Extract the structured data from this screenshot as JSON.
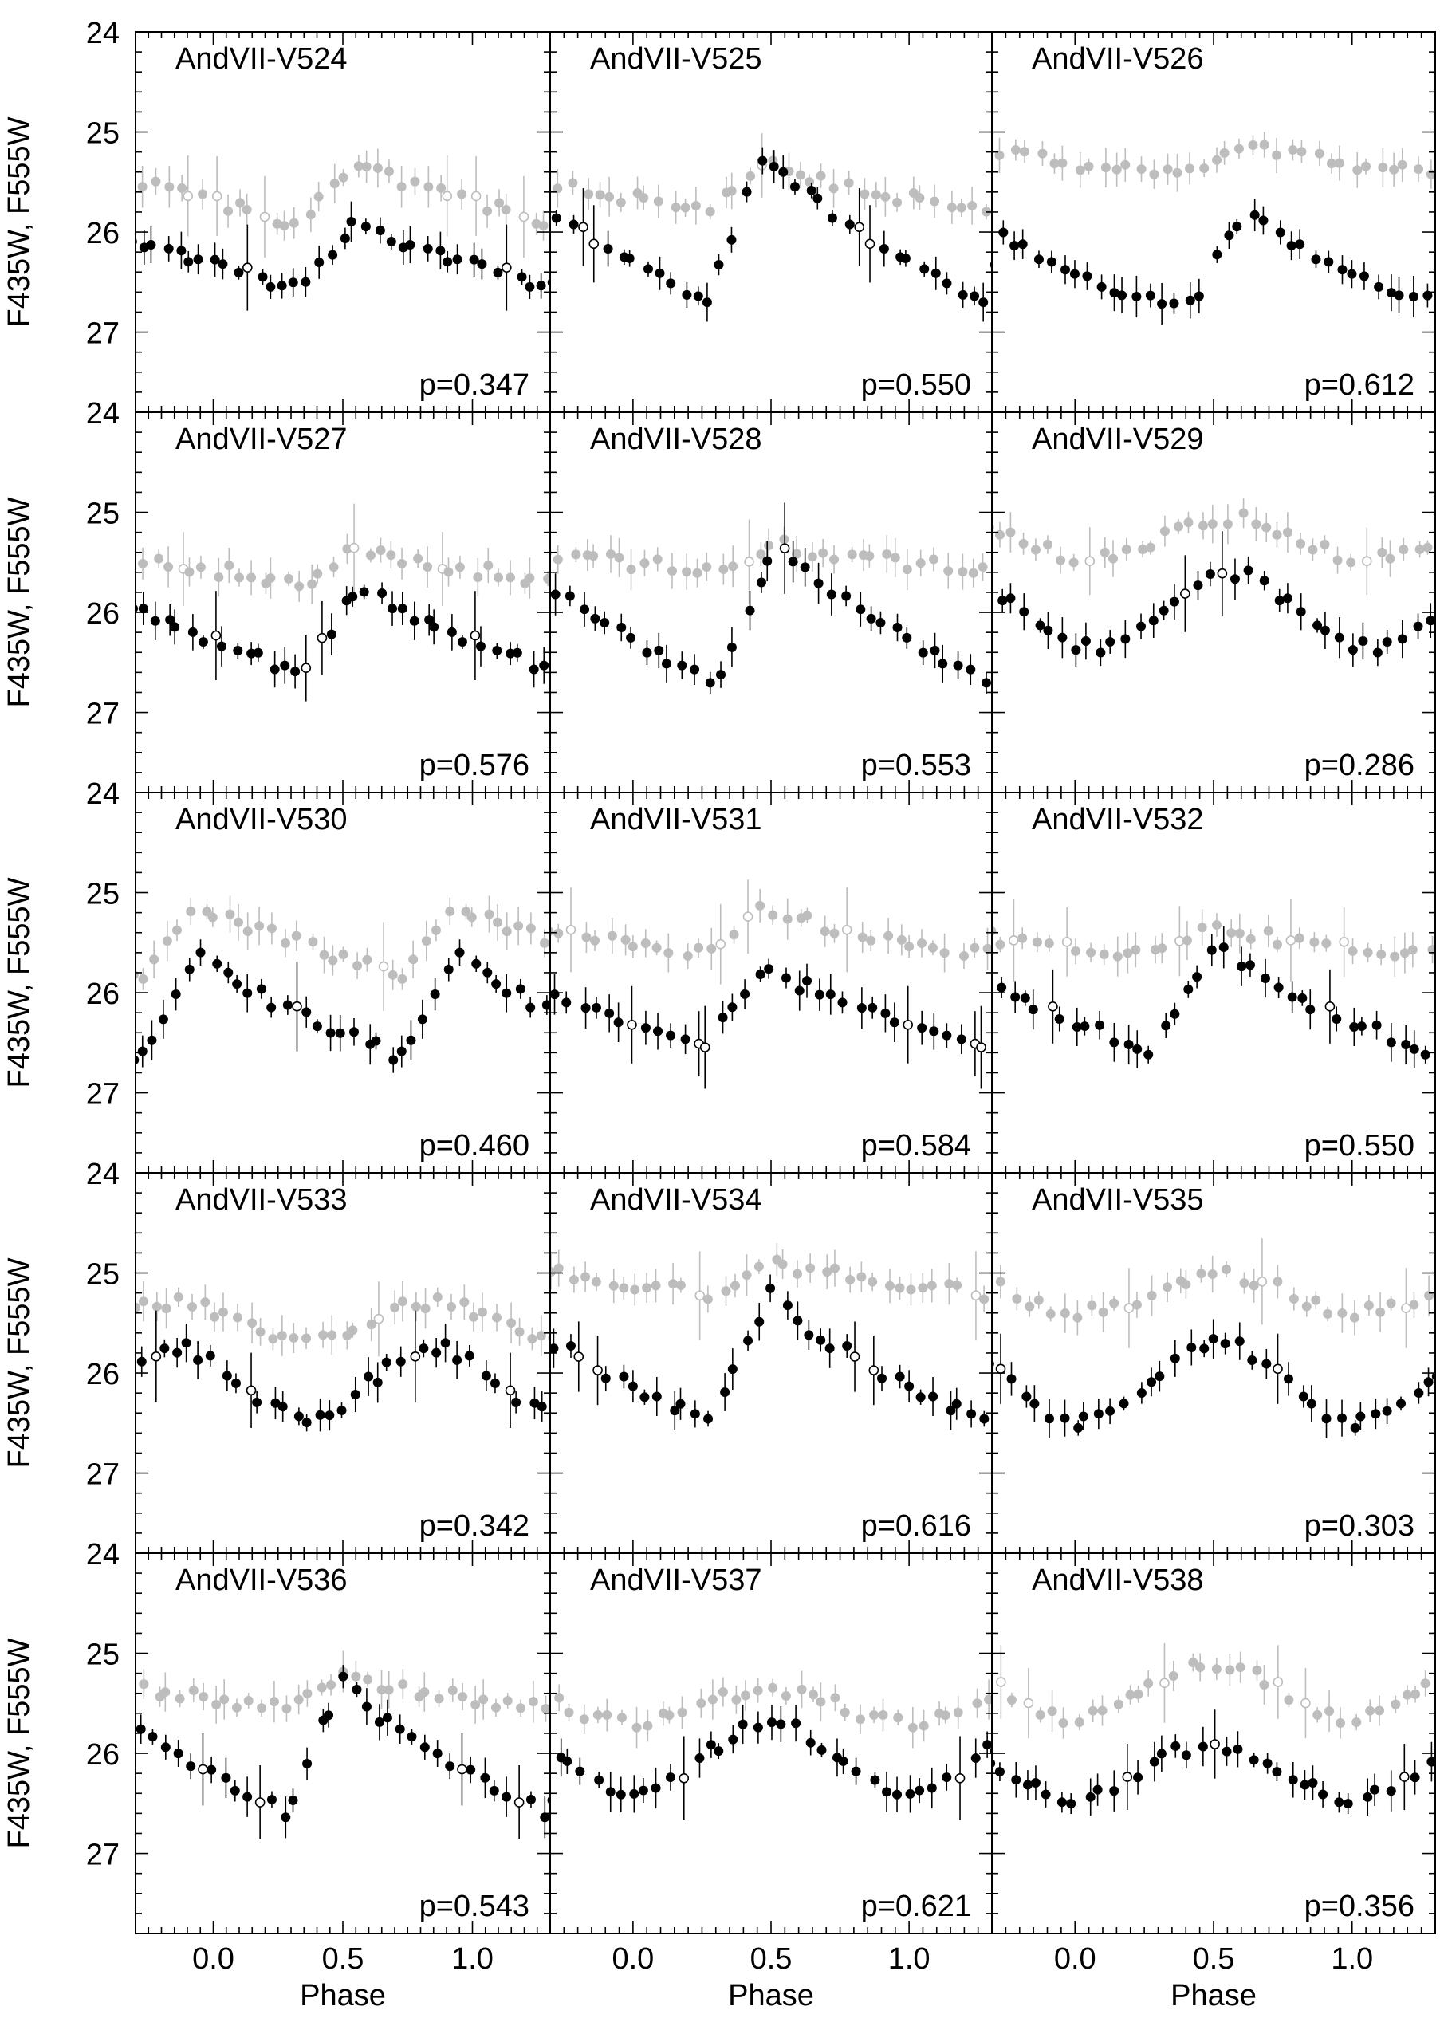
{
  "chart_data": {
    "type": "scatter",
    "xlabel": "Phase",
    "ylabel": "F435W, F555W",
    "xlim": [
      -0.3,
      1.3
    ],
    "ylim": [
      27.8,
      24.0
    ],
    "x_ticks": [
      0.0,
      0.5,
      1.0
    ],
    "x_tick_labels": [
      "0.0",
      "0.5",
      "1.0"
    ],
    "y_ticks": [
      24,
      25,
      26,
      27
    ],
    "y_tick_labels": [
      "24",
      "25",
      "26",
      "27"
    ],
    "grid": false,
    "series_styles": {
      "F555W": "#000000",
      "F435W": "#bdbdbd",
      "filled": "used",
      "open": "rejected"
    },
    "panels": [
      {
        "name": "AndVII-V524",
        "period": "p=0.347",
        "shape": "rr",
        "v_min": 25.9,
        "v_max": 26.55,
        "b_min": 25.3,
        "b_max": 25.9,
        "phase_max": 0.55
      },
      {
        "name": "AndVII-V525",
        "period": "p=0.550",
        "shape": "rr",
        "v_min": 25.15,
        "v_max": 26.7,
        "b_min": 25.3,
        "b_max": 25.8,
        "phase_max": 0.48
      },
      {
        "name": "AndVII-V526",
        "period": "p=0.612",
        "shape": "rr",
        "v_min": 25.8,
        "v_max": 26.8,
        "b_min": 25.1,
        "b_max": 25.45,
        "phase_max": 0.62
      },
      {
        "name": "AndVII-V527",
        "period": "p=0.576",
        "shape": "rr",
        "v_min": 25.7,
        "v_max": 26.6,
        "b_min": 25.35,
        "b_max": 25.7,
        "phase_max": 0.57
      },
      {
        "name": "AndVII-V528",
        "period": "p=0.553",
        "shape": "rr",
        "v_min": 25.3,
        "v_max": 26.7,
        "b_min": 25.3,
        "b_max": 25.6,
        "phase_max": 0.52
      },
      {
        "name": "AndVII-V529",
        "period": "p=0.286",
        "shape": "sin",
        "v_min": 25.6,
        "v_max": 26.35,
        "b_min": 25.05,
        "b_max": 25.45,
        "phase_max": 0.55
      },
      {
        "name": "AndVII-V530",
        "period": "p=0.460",
        "shape": "rr",
        "v_min": 25.6,
        "v_max": 26.65,
        "b_min": 25.1,
        "b_max": 25.8,
        "phase_max": 0.95
      },
      {
        "name": "AndVII-V531",
        "period": "p=0.584",
        "shape": "rr",
        "v_min": 25.7,
        "v_max": 26.55,
        "b_min": 25.15,
        "b_max": 25.6,
        "phase_max": 0.48
      },
      {
        "name": "AndVII-V532",
        "period": "p=0.550",
        "shape": "rr",
        "v_min": 25.5,
        "v_max": 26.6,
        "b_min": 25.35,
        "b_max": 25.6,
        "phase_max": 0.5
      },
      {
        "name": "AndVII-V533",
        "period": "p=0.342",
        "shape": "sin",
        "v_min": 25.75,
        "v_max": 26.45,
        "b_min": 25.3,
        "b_max": 25.7,
        "phase_max": 0.85
      },
      {
        "name": "AndVII-V534",
        "period": "p=0.616",
        "shape": "rr",
        "v_min": 25.2,
        "v_max": 26.5,
        "b_min": 24.9,
        "b_max": 25.2,
        "phase_max": 0.5
      },
      {
        "name": "AndVII-V535",
        "period": "p=0.303",
        "shape": "sin",
        "v_min": 25.7,
        "v_max": 26.5,
        "b_min": 25.0,
        "b_max": 25.4,
        "phase_max": 0.52
      },
      {
        "name": "AndVII-V536",
        "period": "p=0.543",
        "shape": "rr",
        "v_min": 25.25,
        "v_max": 26.6,
        "b_min": 25.25,
        "b_max": 25.55,
        "phase_max": 0.5
      },
      {
        "name": "AndVII-V537",
        "period": "p=0.621",
        "shape": "sin",
        "v_min": 25.7,
        "v_max": 26.4,
        "b_min": 25.35,
        "b_max": 25.7,
        "phase_max": 0.5
      },
      {
        "name": "AndVII-V538",
        "period": "p=0.356",
        "shape": "sin",
        "v_min": 25.9,
        "v_max": 26.45,
        "b_min": 25.1,
        "b_max": 25.65,
        "phase_max": 0.5
      }
    ]
  }
}
